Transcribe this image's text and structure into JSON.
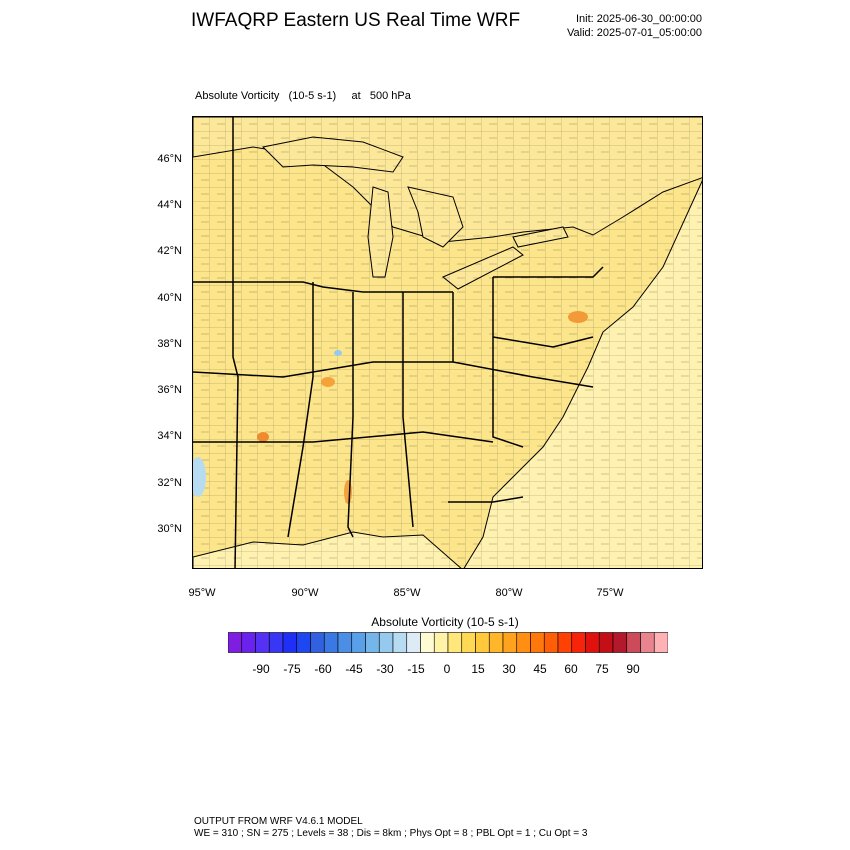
{
  "header": {
    "title": "IWFAQRP Eastern US Real Time WRF",
    "init": "Init: 2025-06-30_00:00:00",
    "valid": "Valid: 2025-07-01_05:00:00"
  },
  "field": {
    "label": "Absolute Vorticity   (10-5 s-1)     at   500 hPa"
  },
  "map": {
    "lat_labels": [
      "46°N",
      "44°N",
      "42°N",
      "40°N",
      "38°N",
      "36°N",
      "34°N",
      "32°N",
      "30°N"
    ],
    "lon_labels": [
      "95°W",
      "90°W",
      "85°W",
      "80°W",
      "75°W"
    ],
    "colors": {
      "background": "#fde792",
      "ocean": "#fef3b3",
      "land_border": "#000000"
    }
  },
  "colorbar": {
    "title": "Absolute Vorticity  (10-5 s-1)",
    "tick_labels": [
      "-90",
      "-75",
      "-60",
      "-45",
      "-30",
      "-15",
      "0",
      "15",
      "30",
      "45",
      "60",
      "75",
      "90"
    ],
    "colors": [
      "#7f1ee0",
      "#6a22ee",
      "#5531f5",
      "#3737f5",
      "#1f2ff5",
      "#1f47f0",
      "#3161e0",
      "#3a78e4",
      "#4a8ee6",
      "#5aa0e8",
      "#74b6ea",
      "#96c9ee",
      "#b7dcf2",
      "#dcebf5",
      "#fffbd2",
      "#fff3a8",
      "#ffe77c",
      "#ffd953",
      "#ffc93b",
      "#ffb62a",
      "#ffa21d",
      "#ff8e13",
      "#ff780c",
      "#ff5e08",
      "#ff4106",
      "#f7240a",
      "#e0120e",
      "#c40f16",
      "#b4182c",
      "#cc4a5a",
      "#e8848e",
      "#ffb2b6"
    ]
  },
  "footer": {
    "line1": "OUTPUT FROM WRF V4.6.1 MODEL",
    "line2": "WE = 310 ; SN = 275 ; Levels = 38 ; Dis = 8km ; Phys Opt = 8 ; PBL Opt = 1 ; Cu Opt = 3"
  }
}
